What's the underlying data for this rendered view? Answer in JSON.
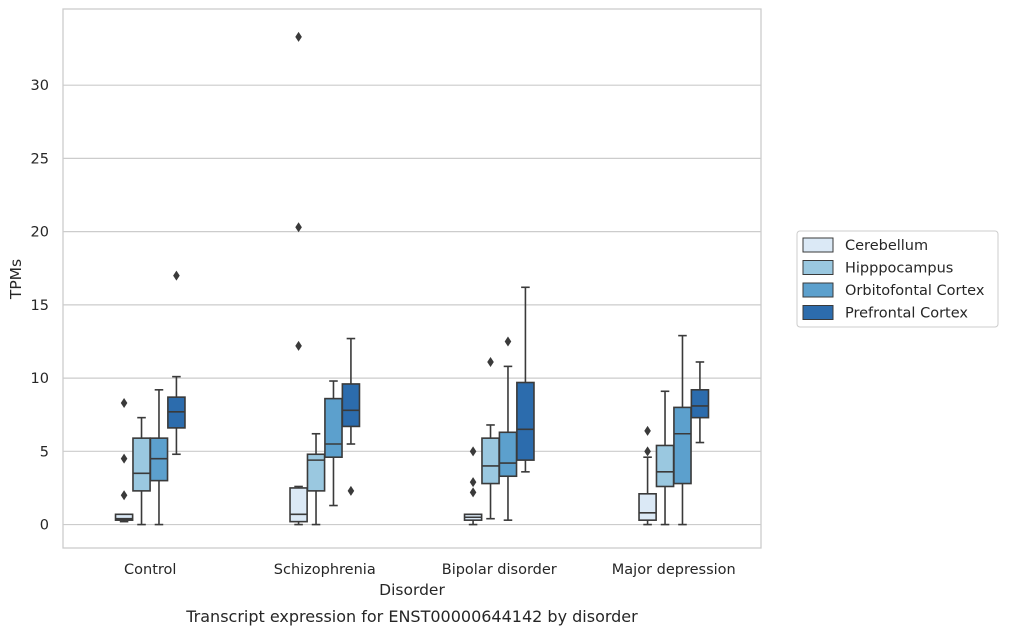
{
  "chart_data": {
    "type": "boxplot",
    "xlabel": "Disorder",
    "ylabel": "TPMs",
    "caption": "Transcript expression for ENST00000644142 by disorder",
    "ylim": [
      -1.6,
      35.2
    ],
    "yticks": [
      "0",
      "5",
      "10",
      "15",
      "20",
      "25",
      "30"
    ],
    "ytick_values": [
      0,
      5,
      10,
      15,
      20,
      25,
      30
    ],
    "grid": "horizontal",
    "legend_position": "right",
    "categories": [
      "Control",
      "Schizophrenia",
      "Bipolar disorder",
      "Major depression"
    ],
    "series": [
      {
        "name": "Cerebellum",
        "color": "#dbe9f6",
        "boxes": [
          {
            "whislo": 0.2,
            "q1": 0.3,
            "med": 0.4,
            "q3": 0.7,
            "whishi": 0.7,
            "fliers": [
              8.3,
              4.5,
              2.0
            ]
          },
          {
            "whislo": 0.0,
            "q1": 0.2,
            "med": 0.7,
            "q3": 2.5,
            "whishi": 2.6,
            "fliers": [
              33.3,
              20.3,
              12.2
            ]
          },
          {
            "whislo": 0.0,
            "q1": 0.3,
            "med": 0.5,
            "q3": 0.7,
            "whishi": 0.7,
            "fliers": [
              5.0,
              2.9,
              2.2
            ]
          },
          {
            "whislo": 0.0,
            "q1": 0.3,
            "med": 0.8,
            "q3": 2.1,
            "whishi": 4.6,
            "fliers": [
              6.4,
              5.0
            ]
          }
        ]
      },
      {
        "name": "Hipppocampus",
        "color": "#9ac8e0",
        "boxes": [
          {
            "whislo": 0.0,
            "q1": 2.3,
            "med": 3.5,
            "q3": 5.9,
            "whishi": 7.3,
            "fliers": []
          },
          {
            "whislo": 0.0,
            "q1": 2.3,
            "med": 4.4,
            "q3": 4.8,
            "whishi": 6.2,
            "fliers": []
          },
          {
            "whislo": 0.4,
            "q1": 2.8,
            "med": 4.0,
            "q3": 5.9,
            "whishi": 6.8,
            "fliers": [
              11.1
            ]
          },
          {
            "whislo": 0.0,
            "q1": 2.6,
            "med": 3.6,
            "q3": 5.4,
            "whishi": 9.1,
            "fliers": []
          }
        ]
      },
      {
        "name": "Orbitofontal Cortex",
        "color": "#5ca0cd",
        "boxes": [
          {
            "whislo": 0.0,
            "q1": 3.0,
            "med": 4.5,
            "q3": 5.9,
            "whishi": 9.2,
            "fliers": []
          },
          {
            "whislo": 1.3,
            "q1": 4.6,
            "med": 5.5,
            "q3": 8.6,
            "whishi": 9.8,
            "fliers": []
          },
          {
            "whislo": 0.3,
            "q1": 3.3,
            "med": 4.2,
            "q3": 6.3,
            "whishi": 10.8,
            "fliers": [
              12.5
            ]
          },
          {
            "whislo": 0.0,
            "q1": 2.8,
            "med": 6.2,
            "q3": 8.0,
            "whishi": 12.9,
            "fliers": []
          }
        ]
      },
      {
        "name": "Prefrontal Cortex",
        "color": "#2c6cad",
        "boxes": [
          {
            "whislo": 4.8,
            "q1": 6.6,
            "med": 7.7,
            "q3": 8.7,
            "whishi": 10.1,
            "fliers": [
              17.0
            ]
          },
          {
            "whislo": 5.5,
            "q1": 6.7,
            "med": 7.8,
            "q3": 9.6,
            "whishi": 12.7,
            "fliers": [
              2.3
            ]
          },
          {
            "whislo": 3.6,
            "q1": 4.4,
            "med": 6.5,
            "q3": 9.7,
            "whishi": 16.2,
            "fliers": []
          },
          {
            "whislo": 5.6,
            "q1": 7.3,
            "med": 8.1,
            "q3": 9.2,
            "whishi": 11.1,
            "fliers": []
          }
        ]
      }
    ]
  }
}
